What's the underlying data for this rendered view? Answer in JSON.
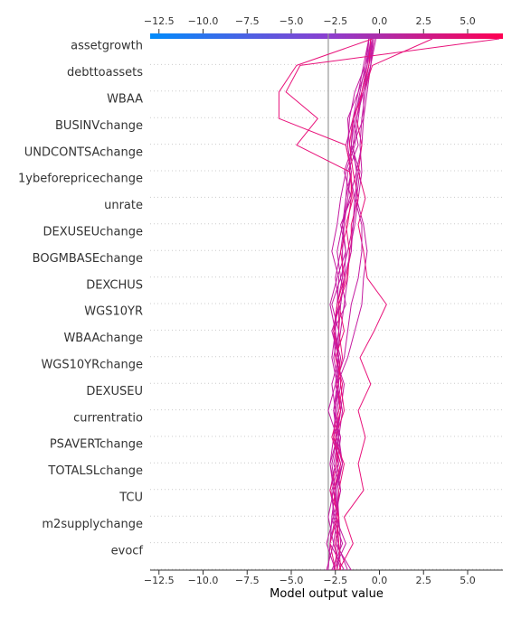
{
  "chart_data": {
    "type": "line",
    "xlabel": "Model output value",
    "xlim": [
      -13.0,
      7.0
    ],
    "x_ticks": [
      "−12.5",
      "−10.0",
      "−7.5",
      "−5.0",
      "−2.5",
      "0.0",
      "2.5",
      "5.0"
    ],
    "x_tick_values": [
      -12.5,
      -10.0,
      -7.5,
      -5.0,
      -2.5,
      0.0,
      2.5,
      5.0
    ],
    "base_value": -2.9,
    "features": [
      "assetgrowth",
      "debttoassets",
      "WBAA",
      "BUSINVchange",
      "UNDCONTSAchange",
      "1ybeforepricechange",
      "unrate",
      "DEXUSEUchange",
      "BOGMBASEchange",
      "DEXCHUS",
      "WGS10YR",
      "WBAAchange",
      "WGS10YRchange",
      "DEXUSEU",
      "currentratio",
      "PSAVERTchange",
      "TOTALSLchange",
      "TCU",
      "m2supplychange",
      "evocf"
    ],
    "colormap": {
      "low": "#008bfb",
      "mid": "#8a3fd0",
      "high": "#ff0052"
    },
    "line_color_default": "#c41ba0",
    "line_color_high": "#e8127a",
    "base_line_color": "#999999",
    "series": [
      {
        "values": [
          -1.8,
          -2.4,
          -2.3,
          -2.6,
          -2.1,
          -2.5,
          -2.2,
          -2.0,
          -2.5,
          -2.6,
          -2.3,
          -2.5,
          -2.2,
          -2.0,
          -1.8,
          -1.6,
          -1.9,
          -1.5,
          -1.2,
          -0.7,
          -0.6
        ],
        "highlight": false
      },
      {
        "values": [
          -2.6,
          -2.3,
          -2.7,
          -2.5,
          -2.7,
          -2.4,
          -2.6,
          -2.4,
          -2.7,
          -2.5,
          -2.8,
          -2.4,
          -1.9,
          -2.1,
          -1.7,
          -1.3,
          -1.0,
          -0.9,
          -0.7,
          -0.5,
          -0.4
        ],
        "highlight": false
      },
      {
        "values": [
          -2.4,
          -2.2,
          -2.3,
          -2.4,
          -2.1,
          -2.3,
          -2.4,
          -2.2,
          -2.3,
          -2.6,
          -2.4,
          -2.1,
          -2.1,
          -2.0,
          -1.9,
          -1.8,
          -1.2,
          -1.5,
          -1.0,
          -0.7,
          -0.5
        ],
        "highlight": false
      },
      {
        "values": [
          -2.2,
          -2.6,
          -2.4,
          -2.5,
          -2.2,
          -2.6,
          -2.5,
          -2.7,
          -2.3,
          -2.5,
          -2.4,
          -2.3,
          -2.7,
          -2.4,
          -2.2,
          -1.9,
          -1.4,
          -1.2,
          -1.0,
          -0.7,
          -0.4
        ],
        "highlight": false
      },
      {
        "values": [
          -2.0,
          -2.8,
          -2.5,
          -2.8,
          -2.5,
          -2.3,
          -2.1,
          -2.4,
          -2.2,
          -2.6,
          -1.9,
          -2.2,
          -1.8,
          -1.5,
          -1.4,
          -1.7,
          -1.6,
          -1.4,
          -1.1,
          -0.8,
          -0.6
        ],
        "highlight": false
      },
      {
        "values": [
          -2.7,
          -2.1,
          -2.6,
          -2.2,
          -2.4,
          -2.2,
          -2.6,
          -2.3,
          -2.4,
          -2.3,
          -2.2,
          -2.0,
          -1.9,
          -2.2,
          -1.6,
          -2.0,
          -1.5,
          -0.9,
          -0.9,
          -0.6,
          -0.3
        ],
        "highlight": false
      },
      {
        "values": [
          -1.6,
          -2.5,
          -2.3,
          -2.5,
          -2.1,
          -2.4,
          -2.2,
          -2.4,
          -1.8,
          -1.4,
          -1.0,
          -0.9,
          -0.7,
          -0.9,
          -1.3,
          -1.1,
          -1.6,
          -1.5,
          -0.9,
          -0.6,
          -0.4
        ],
        "highlight": false
      },
      {
        "values": [
          -2.3,
          -1.5,
          -2.0,
          -0.9,
          -1.2,
          -0.8,
          -1.2,
          -0.5,
          -1.1,
          -0.3,
          0.4,
          -0.7,
          -0.9,
          -1.2,
          -0.8,
          -1.2,
          -1.0,
          -1.3,
          -1.0,
          -0.6,
          -0.5
        ],
        "highlight": true
      },
      {
        "values": [
          -2.5,
          -3.0,
          -2.6,
          -2.7,
          -2.3,
          -2.6,
          -2.2,
          -2.5,
          -2.0,
          -1.8,
          -1.6,
          -1.2,
          -1.0,
          -1.0,
          -1.4,
          -1.2,
          -1.7,
          -1.8,
          -1.2,
          -0.9,
          -0.6
        ],
        "highlight": false
      },
      {
        "values": [
          -2.9,
          -2.8,
          -2.7,
          -2.5,
          -2.8,
          -2.6,
          -2.5,
          -2.3,
          -2.4,
          -2.2,
          -2.0,
          -1.8,
          -1.7,
          -1.4,
          -1.2,
          -1.0,
          -1.1,
          -1.0,
          -0.8,
          -0.5,
          -0.3
        ],
        "highlight": false
      },
      {
        "values": [
          -2.5,
          -2.8,
          -2.4,
          -2.6,
          -2.2,
          -2.7,
          -2.3,
          -2.1,
          -2.5,
          -2.0,
          -2.3,
          -1.9,
          -1.6,
          -1.6,
          -1.2,
          -1.5,
          -1.7,
          -1.5,
          -0.9,
          -0.4,
          3.0
        ],
        "highlight": true
      },
      {
        "values": [
          -2.2,
          -2.3,
          -2.4,
          -2.3,
          -2.0,
          -2.6,
          -2.2,
          -2.4,
          -2.1,
          -2.3,
          -2.3,
          -1.8,
          -1.7,
          -1.9,
          -1.5,
          -1.7,
          -4.7,
          -3.5,
          -5.3,
          -4.5,
          6.8
        ],
        "highlight": true
      },
      {
        "values": [
          -2.4,
          -2.5,
          -2.3,
          -2.8,
          -2.4,
          -2.5,
          -2.0,
          -2.2,
          -2.3,
          -2.6,
          -2.4,
          -2.0,
          -2.2,
          -1.8,
          -1.6,
          -1.6,
          -1.9,
          -5.7,
          -5.7,
          -4.7,
          -0.4
        ],
        "highlight": true
      },
      {
        "values": [
          -2.6,
          -1.9,
          -2.5,
          -2.2,
          -2.6,
          -2.3,
          -2.5,
          -2.3,
          -2.6,
          -2.3,
          -2.7,
          -2.2,
          -2.4,
          -2.1,
          -1.9,
          -1.6,
          -1.8,
          -1.7,
          -1.4,
          -0.8,
          -0.4
        ],
        "highlight": false
      },
      {
        "values": [
          -3.0,
          -2.6,
          -2.9,
          -2.6,
          -2.8,
          -2.4,
          -2.9,
          -2.5,
          -2.3,
          -2.7,
          -2.2,
          -2.0,
          -1.6,
          -1.5,
          -1.3,
          -1.3,
          -1.5,
          -1.3,
          -0.9,
          -0.5,
          -0.2
        ],
        "highlight": false
      }
    ]
  }
}
